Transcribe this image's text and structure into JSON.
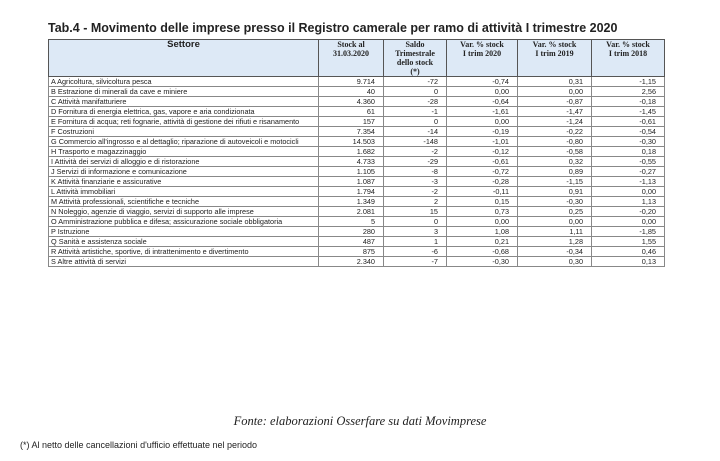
{
  "title": "Tab.4 - Movimento delle imprese presso il Registro camerale per ramo di attività I trimestre 2020",
  "table": {
    "header": [
      "Settore",
      "Stock al\n31.03.2020",
      "Saldo\nTrimestrale\ndello stock\n(*)",
      "Var. % stock\nI trim 2020",
      "Var. % stock\nI trim 2019",
      "Var. % stock\nI trim 2018"
    ],
    "rows": [
      [
        "A Agricoltura, silvicoltura pesca",
        "9.714",
        "-72",
        "-0,74",
        "0,31",
        "-1,15"
      ],
      [
        "B Estrazione di minerali da cave e miniere",
        "40",
        "0",
        "0,00",
        "0,00",
        "2,56"
      ],
      [
        "C Attività manifatturiere",
        "4.360",
        "-28",
        "-0,64",
        "-0,87",
        "-0,18"
      ],
      [
        "D Fornitura di energia elettrica, gas, vapore e aria condizionata",
        "61",
        "-1",
        "-1,61",
        "-1,47",
        "-1,45"
      ],
      [
        "E Fornitura di acqua; reti fognarie, attività di gestione dei rifiuti e risanamento",
        "157",
        "0",
        "0,00",
        "-1,24",
        "-0,61"
      ],
      [
        "F Costruzioni",
        "7.354",
        "-14",
        "-0,19",
        "-0,22",
        "-0,54"
      ],
      [
        "G Commercio all'ingrosso e al dettaglio; riparazione di autoveicoli e motocicli",
        "14.503",
        "-148",
        "-1,01",
        "-0,80",
        "-0,30"
      ],
      [
        "H Trasporto e magazzinaggio",
        "1.682",
        "-2",
        "-0,12",
        "-0,58",
        "0,18"
      ],
      [
        "I Attività dei servizi di alloggio e di ristorazione",
        "4.733",
        "-29",
        "-0,61",
        "0,32",
        "-0,55"
      ],
      [
        "J Servizi di informazione e comunicazione",
        "1.105",
        "-8",
        "-0,72",
        "0,89",
        "-0,27"
      ],
      [
        "K Attività finanziarie e assicurative",
        "1.087",
        "-3",
        "-0,28",
        "-1,15",
        "-1,13"
      ],
      [
        "L Attività immobiliari",
        "1.794",
        "-2",
        "-0,11",
        "0,91",
        "0,00"
      ],
      [
        "M Attività professionali, scientifiche e tecniche",
        "1.349",
        "2",
        "0,15",
        "-0,30",
        "1,13"
      ],
      [
        "N Noleggio, agenzie di viaggio, servizi di supporto alle imprese",
        "2.081",
        "15",
        "0,73",
        "0,25",
        "-0,20"
      ],
      [
        "O Amministrazione pubblica e difesa; assicurazione sociale obbligatoria",
        "5",
        "0",
        "0,00",
        "0,00",
        "0,00"
      ],
      [
        "P Istruzione",
        "280",
        "3",
        "1,08",
        "1,11",
        "-1,85"
      ],
      [
        "Q Sanità e assistenza sociale",
        "487",
        "1",
        "0,21",
        "1,28",
        "1,55"
      ],
      [
        "R Attività artistiche, sportive, di intrattenimento e divertimento",
        "875",
        "-6",
        "-0,68",
        "-0,34",
        "0,46"
      ],
      [
        "S Altre attività di servizi",
        "2.340",
        "-7",
        "-0,30",
        "0,30",
        "0,13"
      ]
    ]
  },
  "source": "Fonte: elaborazioni Osserfare su dati Movimprese",
  "footnote": "(*) Al netto delle cancellazioni d'ufficio effettuate nel periodo"
}
